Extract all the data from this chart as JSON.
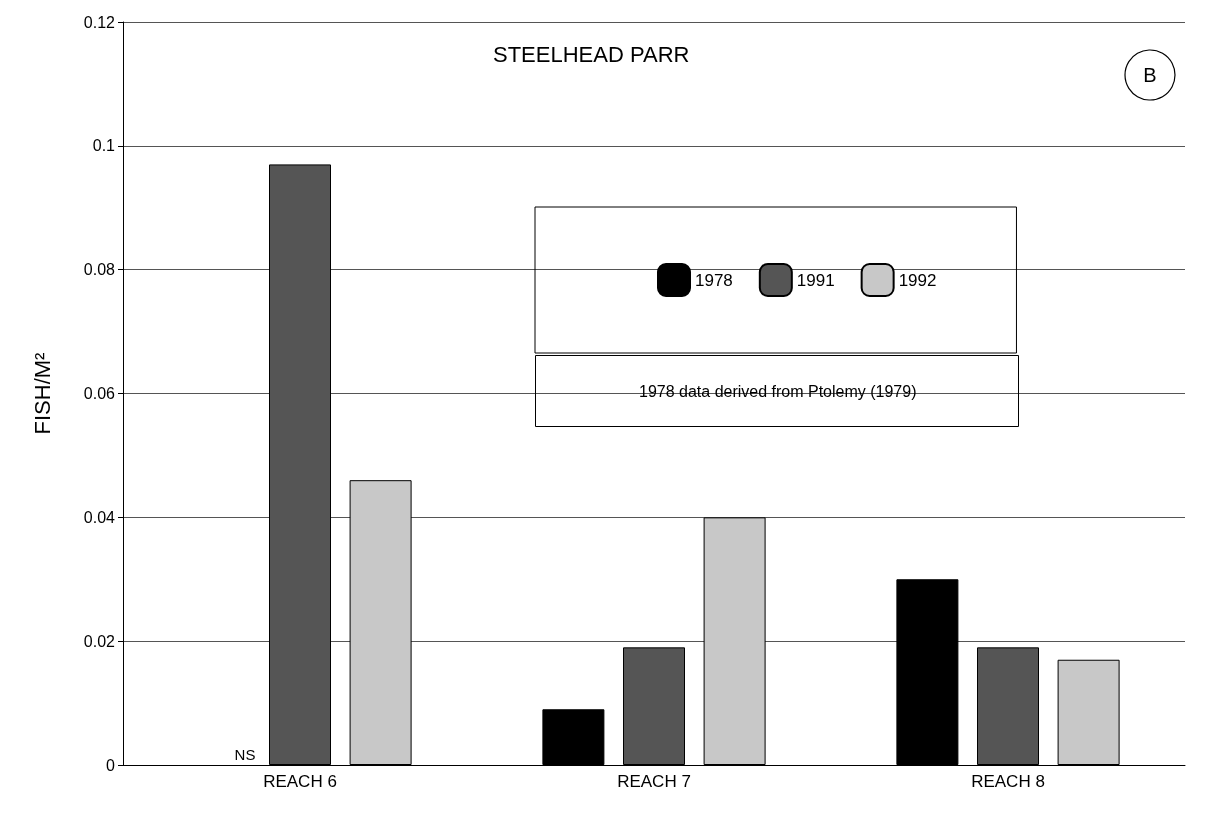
{
  "chart_data": {
    "type": "bar",
    "title": "STEELHEAD PARR",
    "ylabel": "FISH/M²",
    "categories": [
      "REACH 6",
      "REACH 7",
      "REACH 8"
    ],
    "series": [
      {
        "name": "1978",
        "color": "#000000",
        "values": [
          null,
          0.009,
          0.03
        ]
      },
      {
        "name": "1991",
        "color": "#555555",
        "values": [
          0.097,
          0.019,
          0.019
        ]
      },
      {
        "name": "1992",
        "color": "#c8c8c8",
        "values": [
          0.046,
          0.04,
          0.017
        ]
      }
    ],
    "ylim": [
      0,
      0.12
    ],
    "yticks": [
      0,
      0.02,
      0.04,
      0.06,
      0.08,
      0.1,
      0.12
    ],
    "grid": "y",
    "legend": "right",
    "annotations": [
      "NS",
      "B",
      "1978 data derived from Ptolemy (1979)"
    ]
  }
}
